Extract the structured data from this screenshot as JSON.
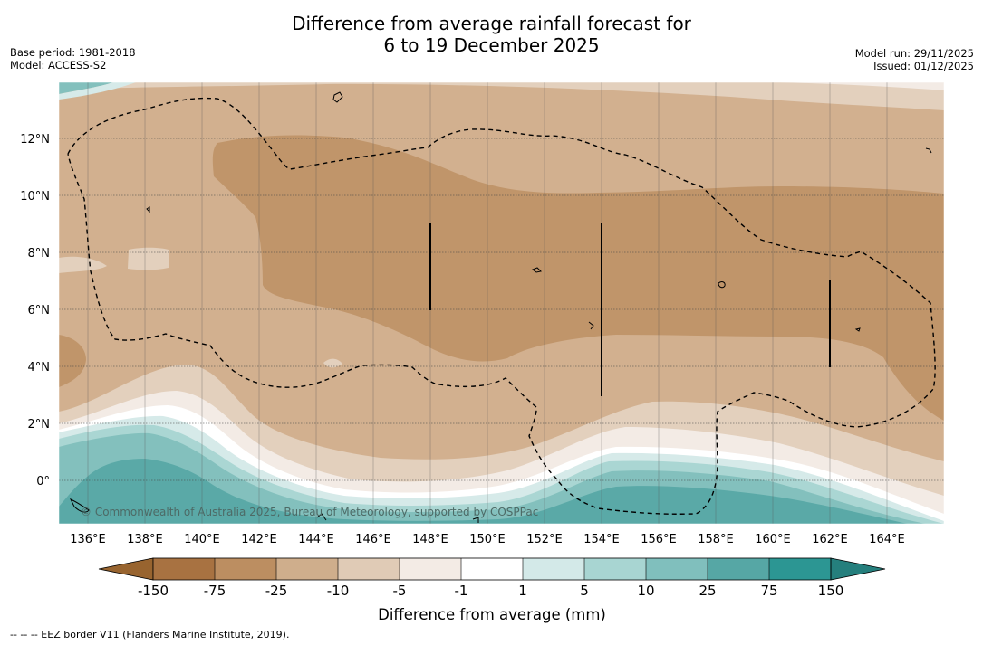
{
  "title": {
    "line1": "Difference from average rainfall forecast for",
    "line2": "6 to 19 December 2025"
  },
  "meta_left": {
    "base_period": "Base period: 1981-2018",
    "model": "Model: ACCESS-S2"
  },
  "meta_right": {
    "model_run": "Model run: 29/11/2025",
    "issued": "Issued: 01/12/2025"
  },
  "map": {
    "lon_labels": [
      "136°E",
      "138°E",
      "140°E",
      "142°E",
      "144°E",
      "146°E",
      "148°E",
      "150°E",
      "152°E",
      "154°E",
      "156°E",
      "158°E",
      "160°E",
      "162°E",
      "164°E"
    ],
    "lat_labels": [
      "12°N",
      "10°N",
      "8°N",
      "6°N",
      "4°N",
      "2°N",
      "0°"
    ],
    "copyright": "© Commonwealth of Australia 2025, Bureau of Meteorology, supported by COSPPac",
    "colors": {
      "dry_strong": "#c0956a",
      "dry_mid": "#d2b08f",
      "dry_light": "#e3d0bd",
      "dry_faint": "#f3ebe5",
      "neutral": "#ffffff",
      "wet_faint": "#d6eae9",
      "wet_light": "#aad6d3",
      "wet_mid": "#83c0bd",
      "wet_strong": "#5aa9a7"
    }
  },
  "colorbar": {
    "labels": [
      "-150",
      "-75",
      "-25",
      "-10",
      "-5",
      "-1",
      "1",
      "5",
      "10",
      "25",
      "75",
      "150"
    ],
    "colors": [
      "#a87241",
      "#bc8e61",
      "#cfae8c",
      "#e0cbb6",
      "#f3ebe5",
      "#ffffff",
      "#d3e9e8",
      "#a8d5d2",
      "#80bfbd",
      "#56a7a5",
      "#2c9693"
    ],
    "end_left_color": "#98642f",
    "end_right_color": "#257f7d",
    "title": "Difference from average (mm)"
  },
  "footnote": "--  --  -- EEZ border V11 (Flanders Marine Institute, 2019)."
}
